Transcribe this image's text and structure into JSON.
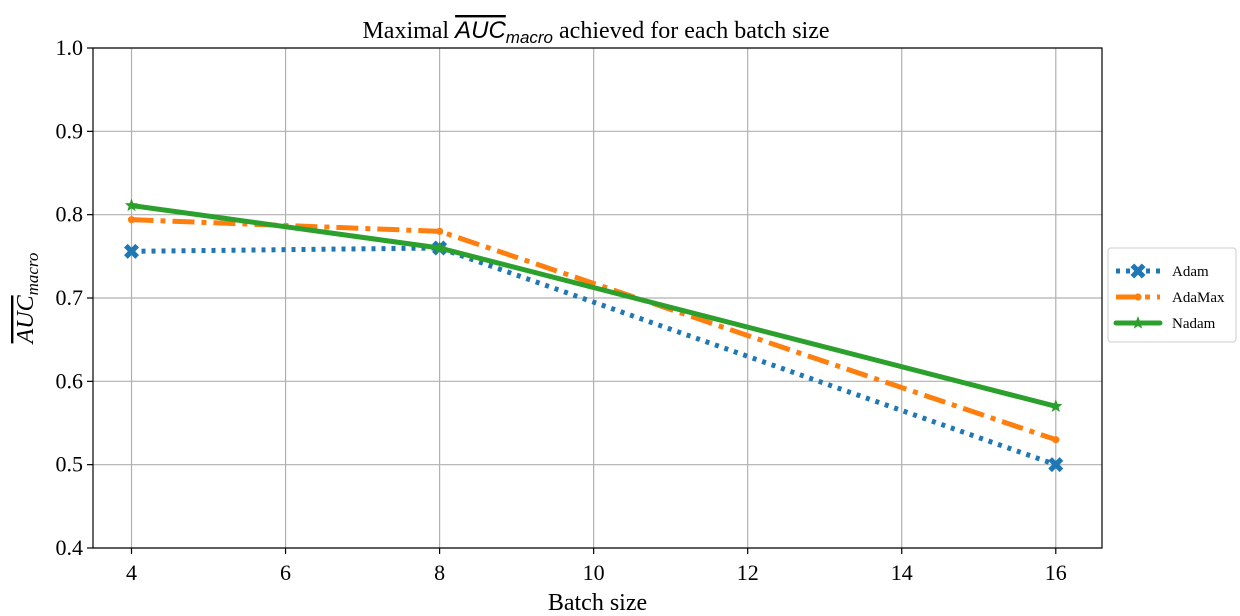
{
  "chart_data": {
    "type": "line",
    "title": {
      "prefix": "Maximal ",
      "symbol_main": "AUC",
      "symbol_sub": "macro",
      "suffix": " achieved for each batch size"
    },
    "xlabel": "Batch size",
    "ylabel": {
      "symbol_main": "AUC",
      "symbol_sub": "macro"
    },
    "x": [
      4,
      8,
      16
    ],
    "xlim": [
      3.5,
      16.6
    ],
    "ylim": [
      0.4,
      1.0
    ],
    "xticks": [
      "4",
      "6",
      "8",
      "10",
      "12",
      "14",
      "16"
    ],
    "xtick_values": [
      4,
      6,
      8,
      10,
      12,
      14,
      16
    ],
    "yticks": [
      "0.4",
      "0.5",
      "0.6",
      "0.7",
      "0.8",
      "0.9",
      "1.0"
    ],
    "ytick_values": [
      0.4,
      0.5,
      0.6,
      0.7,
      0.8,
      0.9,
      1.0
    ],
    "grid": true,
    "legend_position": "outside-right",
    "series": [
      {
        "name": "Adam",
        "values": [
          0.756,
          0.76,
          0.5
        ],
        "color": "#1f77b4",
        "linestyle": "dotted",
        "marker": "x-filled"
      },
      {
        "name": "AdaMax",
        "values": [
          0.794,
          0.78,
          0.53
        ],
        "color": "#ff7f0e",
        "linestyle": "dashdot",
        "marker": "dot"
      },
      {
        "name": "Nadam",
        "values": [
          0.811,
          0.76,
          0.57
        ],
        "color": "#2ca02c",
        "linestyle": "solid",
        "marker": "star"
      }
    ]
  }
}
